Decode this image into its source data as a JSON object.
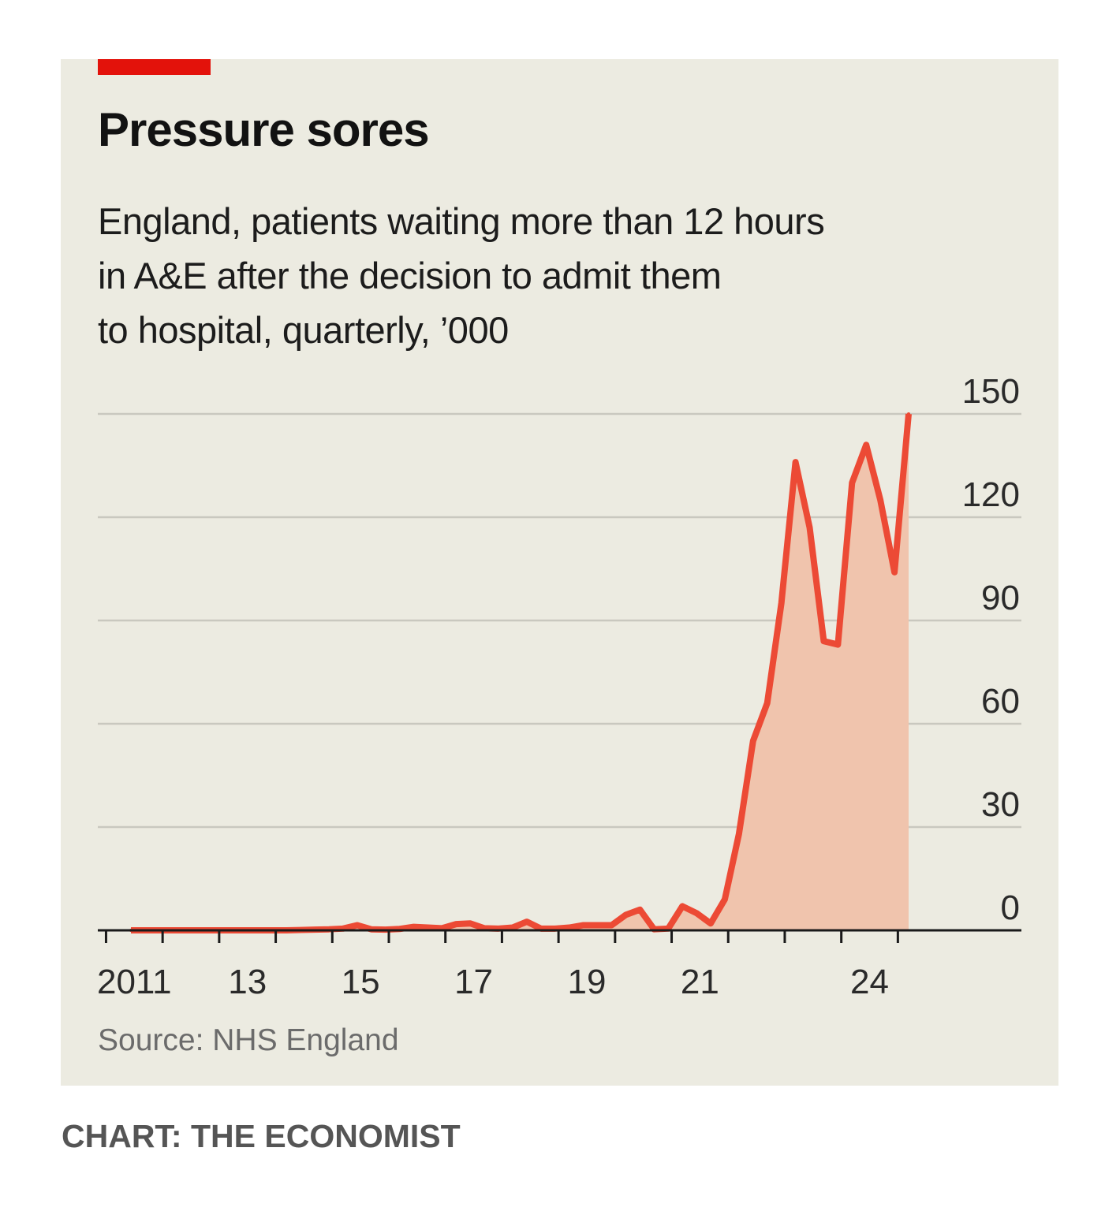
{
  "header": {
    "title": "Pressure sores",
    "subtitle_lines": [
      "England, patients waiting more than 12 hours",
      "in A&E after the decision to admit them",
      "to hospital, quarterly, ’000"
    ]
  },
  "footer": {
    "source": "Source: NHS England",
    "credit": "CHART: THE ECONOMIST"
  },
  "colors": {
    "accent": "#e3120b",
    "line": "#ec4a35",
    "area": "#f0c4ad",
    "panel": "#ecebe1"
  },
  "chart_data": {
    "type": "area",
    "title": "Pressure sores",
    "subtitle": "England, patients waiting more than 12 hours in A&E after the decision to admit them to hospital, quarterly, ’000",
    "xlabel": "",
    "ylabel": "",
    "ylim": [
      0,
      150
    ],
    "yticks": [
      0,
      30,
      60,
      90,
      120,
      150
    ],
    "ytick_labels": [
      "0",
      "30",
      "60",
      "90",
      "120",
      "150"
    ],
    "y_axis_side": "right",
    "grid": true,
    "xlim": [
      2010.75,
      2025.0
    ],
    "x_tick_years": [
      2011,
      2012,
      2013,
      2014,
      2015,
      2016,
      2017,
      2018,
      2019,
      2020,
      2021,
      2022,
      2023,
      2024,
      2025
    ],
    "x_labels": [
      {
        "label": "2011",
        "x": 2011.5
      },
      {
        "label": "13",
        "x": 2013.5
      },
      {
        "label": "15",
        "x": 2015.5
      },
      {
        "label": "17",
        "x": 2017.5
      },
      {
        "label": "19",
        "x": 2019.5
      },
      {
        "label": "21",
        "x": 2021.5
      },
      {
        "label": "24",
        "x": 2024.5
      }
    ],
    "series": [
      {
        "x": [
          2011.0,
          2011.25,
          2011.5,
          2011.75,
          2012.0,
          2012.25,
          2012.5,
          2012.75,
          2013.0,
          2013.25,
          2013.5,
          2013.75,
          2014.0,
          2014.25,
          2014.5,
          2014.75,
          2015.0,
          2015.25,
          2015.5,
          2015.75,
          2016.0,
          2016.25,
          2016.5,
          2016.75,
          2017.0,
          2017.25,
          2017.5,
          2017.75,
          2018.0,
          2018.25,
          2018.5,
          2018.75,
          2019.0,
          2019.25,
          2019.5,
          2019.75,
          2020.0,
          2020.25,
          2020.5,
          2020.75,
          2021.0,
          2021.25,
          2021.5,
          2021.75,
          2022.0,
          2022.25,
          2022.5,
          2022.75,
          2023.0,
          2023.25,
          2023.5,
          2023.75,
          2024.0,
          2024.25,
          2024.5,
          2024.75
        ],
        "values": [
          0.0,
          0.0,
          0.0,
          0.0,
          0.0,
          0.0,
          0.0,
          0.0,
          0.0,
          0.0,
          0.0,
          0.0,
          0.1,
          0.2,
          0.3,
          0.5,
          1.5,
          0.3,
          0.2,
          0.4,
          1.0,
          0.8,
          0.6,
          1.8,
          2.0,
          0.6,
          0.5,
          0.8,
          2.5,
          0.5,
          0.5,
          0.8,
          1.5,
          1.5,
          1.5,
          4.5,
          6.0,
          0.3,
          0.5,
          7.0,
          5.0,
          2.0,
          9.0,
          28.0,
          55.0,
          66.0,
          95.0,
          136.0,
          117.0,
          84.0,
          83.0,
          130.0,
          141.0,
          125.0,
          104.0,
          150.0
        ]
      }
    ]
  }
}
